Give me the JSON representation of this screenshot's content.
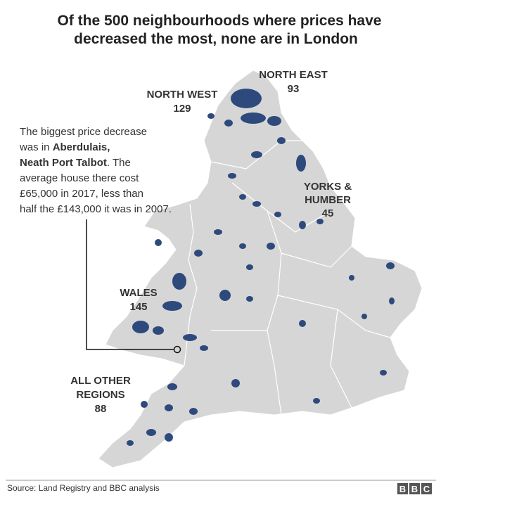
{
  "title": [
    "Of the 500 neighbourhoods where prices have",
    "decreased the most, none are in London"
  ],
  "regions": [
    {
      "name": [
        "NORTH EAST"
      ],
      "count": 93
    },
    {
      "name": [
        "NORTH WEST"
      ],
      "count": 129
    },
    {
      "name": [
        "YORKS &",
        "HUMBER"
      ],
      "count": 45
    },
    {
      "name": [
        "WALES"
      ],
      "count": 145
    },
    {
      "name": [
        "ALL OTHER",
        "REGIONS"
      ],
      "count": 88
    }
  ],
  "annotation": [
    [
      "The biggest price decrease"
    ],
    [
      "was in ",
      "Aberdulais,"
    ],
    [
      "Neath Port Talbot",
      ". The"
    ],
    [
      "average house there cost"
    ],
    [
      "£65,000 in 2017, less than"
    ],
    [
      "half the £143,000 it was in 2007."
    ]
  ],
  "source": "Source: Land Registry and BBC analysis",
  "logo": [
    "B",
    "B",
    "C"
  ]
}
